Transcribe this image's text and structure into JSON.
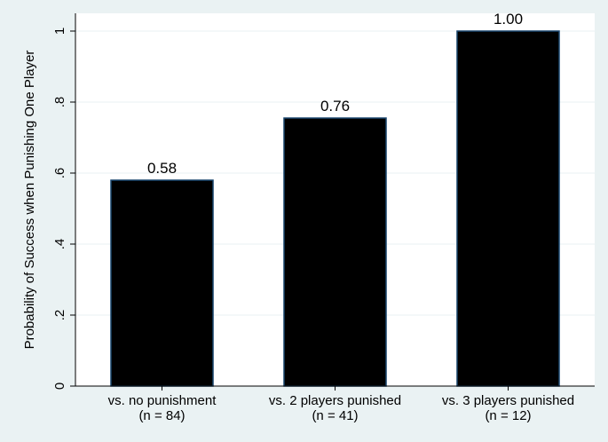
{
  "chart_data": {
    "type": "bar",
    "categories": [
      [
        "vs. no punishment",
        "(n = 84)"
      ],
      [
        "vs. 2 players punished",
        "(n = 41)"
      ],
      [
        "vs. 3 players punished",
        "(n = 12)"
      ]
    ],
    "values": [
      0.58,
      0.755,
      1.0
    ],
    "data_labels": [
      "0.58",
      "0.76",
      "1.00"
    ],
    "ylabel": "Probability of Success when Punishing One Player",
    "ylim": [
      0,
      1
    ],
    "yticks": [
      0,
      0.2,
      0.4,
      0.6,
      0.8,
      1
    ],
    "ytick_labels": [
      "0",
      ".2",
      ".4",
      ".6",
      ".8",
      "1"
    ],
    "grid": true,
    "colors": {
      "bar_fill": "#000000",
      "bar_edge": "#1a476f",
      "plot_bg": "#ffffff",
      "outer_bg": "#eaf2f3",
      "grid": "#eaf2f3"
    }
  }
}
